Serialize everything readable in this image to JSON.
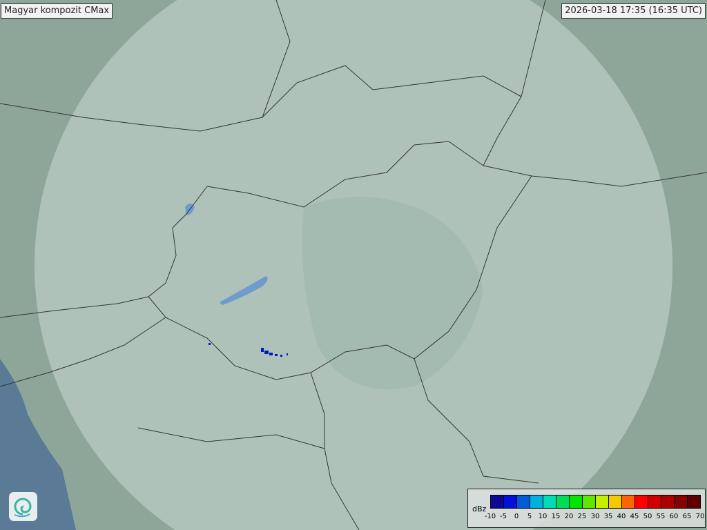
{
  "header": {
    "title": "Magyar kompozit  CMax",
    "timestamp": "2026-03-18 17:35 (16:35 UTC)"
  },
  "legend": {
    "unit": "dBz",
    "ticks": [
      "-10",
      "-5",
      "0",
      "5",
      "10",
      "15",
      "20",
      "25",
      "30",
      "35",
      "40",
      "45",
      "50",
      "55",
      "60",
      "65",
      "70"
    ],
    "colors": [
      "#0a0a96",
      "#0012d8",
      "#005cd6",
      "#00b0dc",
      "#00dcb8",
      "#00dc5a",
      "#00e400",
      "#5ee800",
      "#c2f000",
      "#f6c800",
      "#ff6400",
      "#ff0000",
      "#d00000",
      "#ac0000",
      "#860000",
      "#5c0000"
    ]
  },
  "map": {
    "land_color": "#8ea69a",
    "coverage_color": "#d6e4df",
    "sea_color": "#5a7a96",
    "lake_color": "#6f9ccc",
    "echo_color": "#0018c8"
  },
  "logo": {
    "icon": "swirl-logo-icon"
  }
}
